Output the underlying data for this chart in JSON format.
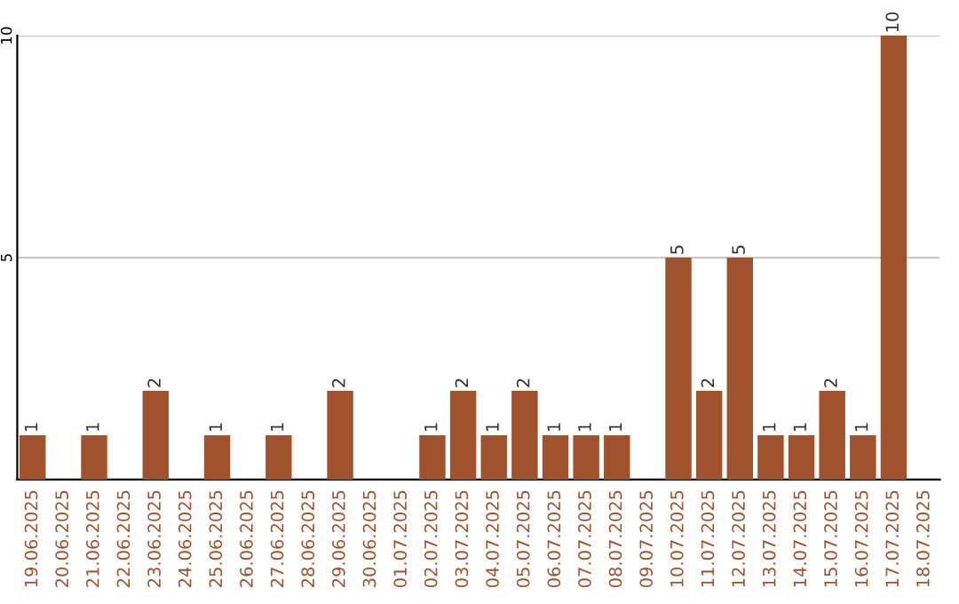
{
  "chart_data": {
    "type": "bar",
    "categories": [
      "19.06.2025",
      "20.06.2025",
      "21.06.2025",
      "22.06.2025",
      "23.06.2025",
      "24.06.2025",
      "25.06.2025",
      "26.06.2025",
      "27.06.2025",
      "28.06.2025",
      "29.06.2025",
      "30.06.2025",
      "01.07.2025",
      "02.07.2025",
      "03.07.2025",
      "04.07.2025",
      "05.07.2025",
      "06.07.2025",
      "07.07.2025",
      "08.07.2025",
      "09.07.2025",
      "10.07.2025",
      "11.07.2025",
      "12.07.2025",
      "13.07.2025",
      "14.07.2025",
      "15.07.2025",
      "16.07.2025",
      "17.07.2025",
      "18.07.2025"
    ],
    "values": [
      1,
      0,
      1,
      0,
      2,
      0,
      1,
      0,
      1,
      0,
      2,
      0,
      0,
      1,
      2,
      1,
      2,
      1,
      1,
      1,
      0,
      5,
      2,
      5,
      1,
      1,
      2,
      1,
      10,
      0
    ],
    "value_labels": [
      "1",
      null,
      "1",
      null,
      "2",
      null,
      "1",
      null,
      "1",
      null,
      "2",
      null,
      null,
      "1",
      "2",
      "1",
      "2",
      "1",
      "1",
      "1",
      null,
      "5",
      "2",
      "5",
      "1",
      "1",
      "2",
      "1",
      "10",
      null
    ],
    "color": "#a0522d",
    "ylim": [
      0,
      10
    ],
    "yticks": [
      5,
      10
    ],
    "grid": "y",
    "legend": false
  }
}
